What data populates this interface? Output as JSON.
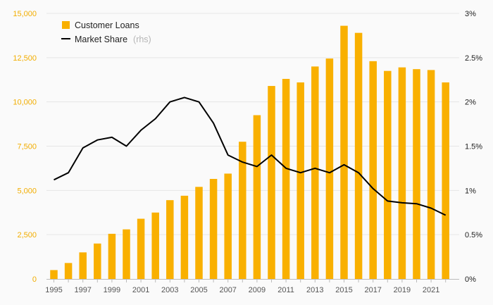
{
  "chart_data": {
    "type": "bar+line",
    "x": [
      1995,
      1996,
      1997,
      1998,
      1999,
      2000,
      2001,
      2002,
      2003,
      2004,
      2005,
      2006,
      2007,
      2008,
      2009,
      2010,
      2011,
      2012,
      2013,
      2014,
      2015,
      2016,
      2017,
      2018,
      2019,
      2020,
      2021,
      2022
    ],
    "x_tick_labels": [
      "1995",
      "1997",
      "1999",
      "2001",
      "2003",
      "2005",
      "2007",
      "2009",
      "2011",
      "2013",
      "2015",
      "2017",
      "2019",
      "2021"
    ],
    "series": [
      {
        "name": "Customer Loans",
        "type": "bar",
        "axis": "left",
        "color": "#f9b000",
        "values": [
          500,
          900,
          1500,
          2000,
          2550,
          2800,
          3400,
          3750,
          4450,
          4700,
          5200,
          5650,
          5950,
          7750,
          9250,
          10900,
          11300,
          11100,
          12000,
          12450,
          14300,
          13900,
          12300,
          11750,
          11950,
          11850,
          11800,
          11100
        ]
      },
      {
        "name": "Market Share",
        "name_suffix": "(rhs)",
        "type": "line",
        "axis": "right",
        "color": "#000000",
        "values": [
          1.12,
          1.2,
          1.48,
          1.57,
          1.6,
          1.5,
          1.68,
          1.81,
          2.0,
          2.05,
          2.0,
          1.76,
          1.4,
          1.32,
          1.27,
          1.4,
          1.25,
          1.2,
          1.25,
          1.2,
          1.29,
          1.2,
          1.02,
          0.88,
          0.86,
          0.85,
          0.8,
          0.72
        ]
      }
    ],
    "y_left": {
      "min": 0,
      "max": 15000,
      "ticks": [
        "0",
        "2,500",
        "5,000",
        "7,500",
        "10,000",
        "12,500",
        "15,000"
      ],
      "tick_values": [
        0,
        2500,
        5000,
        7500,
        10000,
        12500,
        15000
      ]
    },
    "y_right": {
      "min": 0,
      "max": 3,
      "ticks": [
        "0%",
        "0.5%",
        "1%",
        "1.5%",
        "2%",
        "2.5%",
        "3%"
      ],
      "tick_values": [
        0,
        0.5,
        1,
        1.5,
        2,
        2.5,
        3
      ]
    },
    "grid": true,
    "legend": "top-left",
    "title": "",
    "xlabel": "",
    "ylabel": ""
  }
}
